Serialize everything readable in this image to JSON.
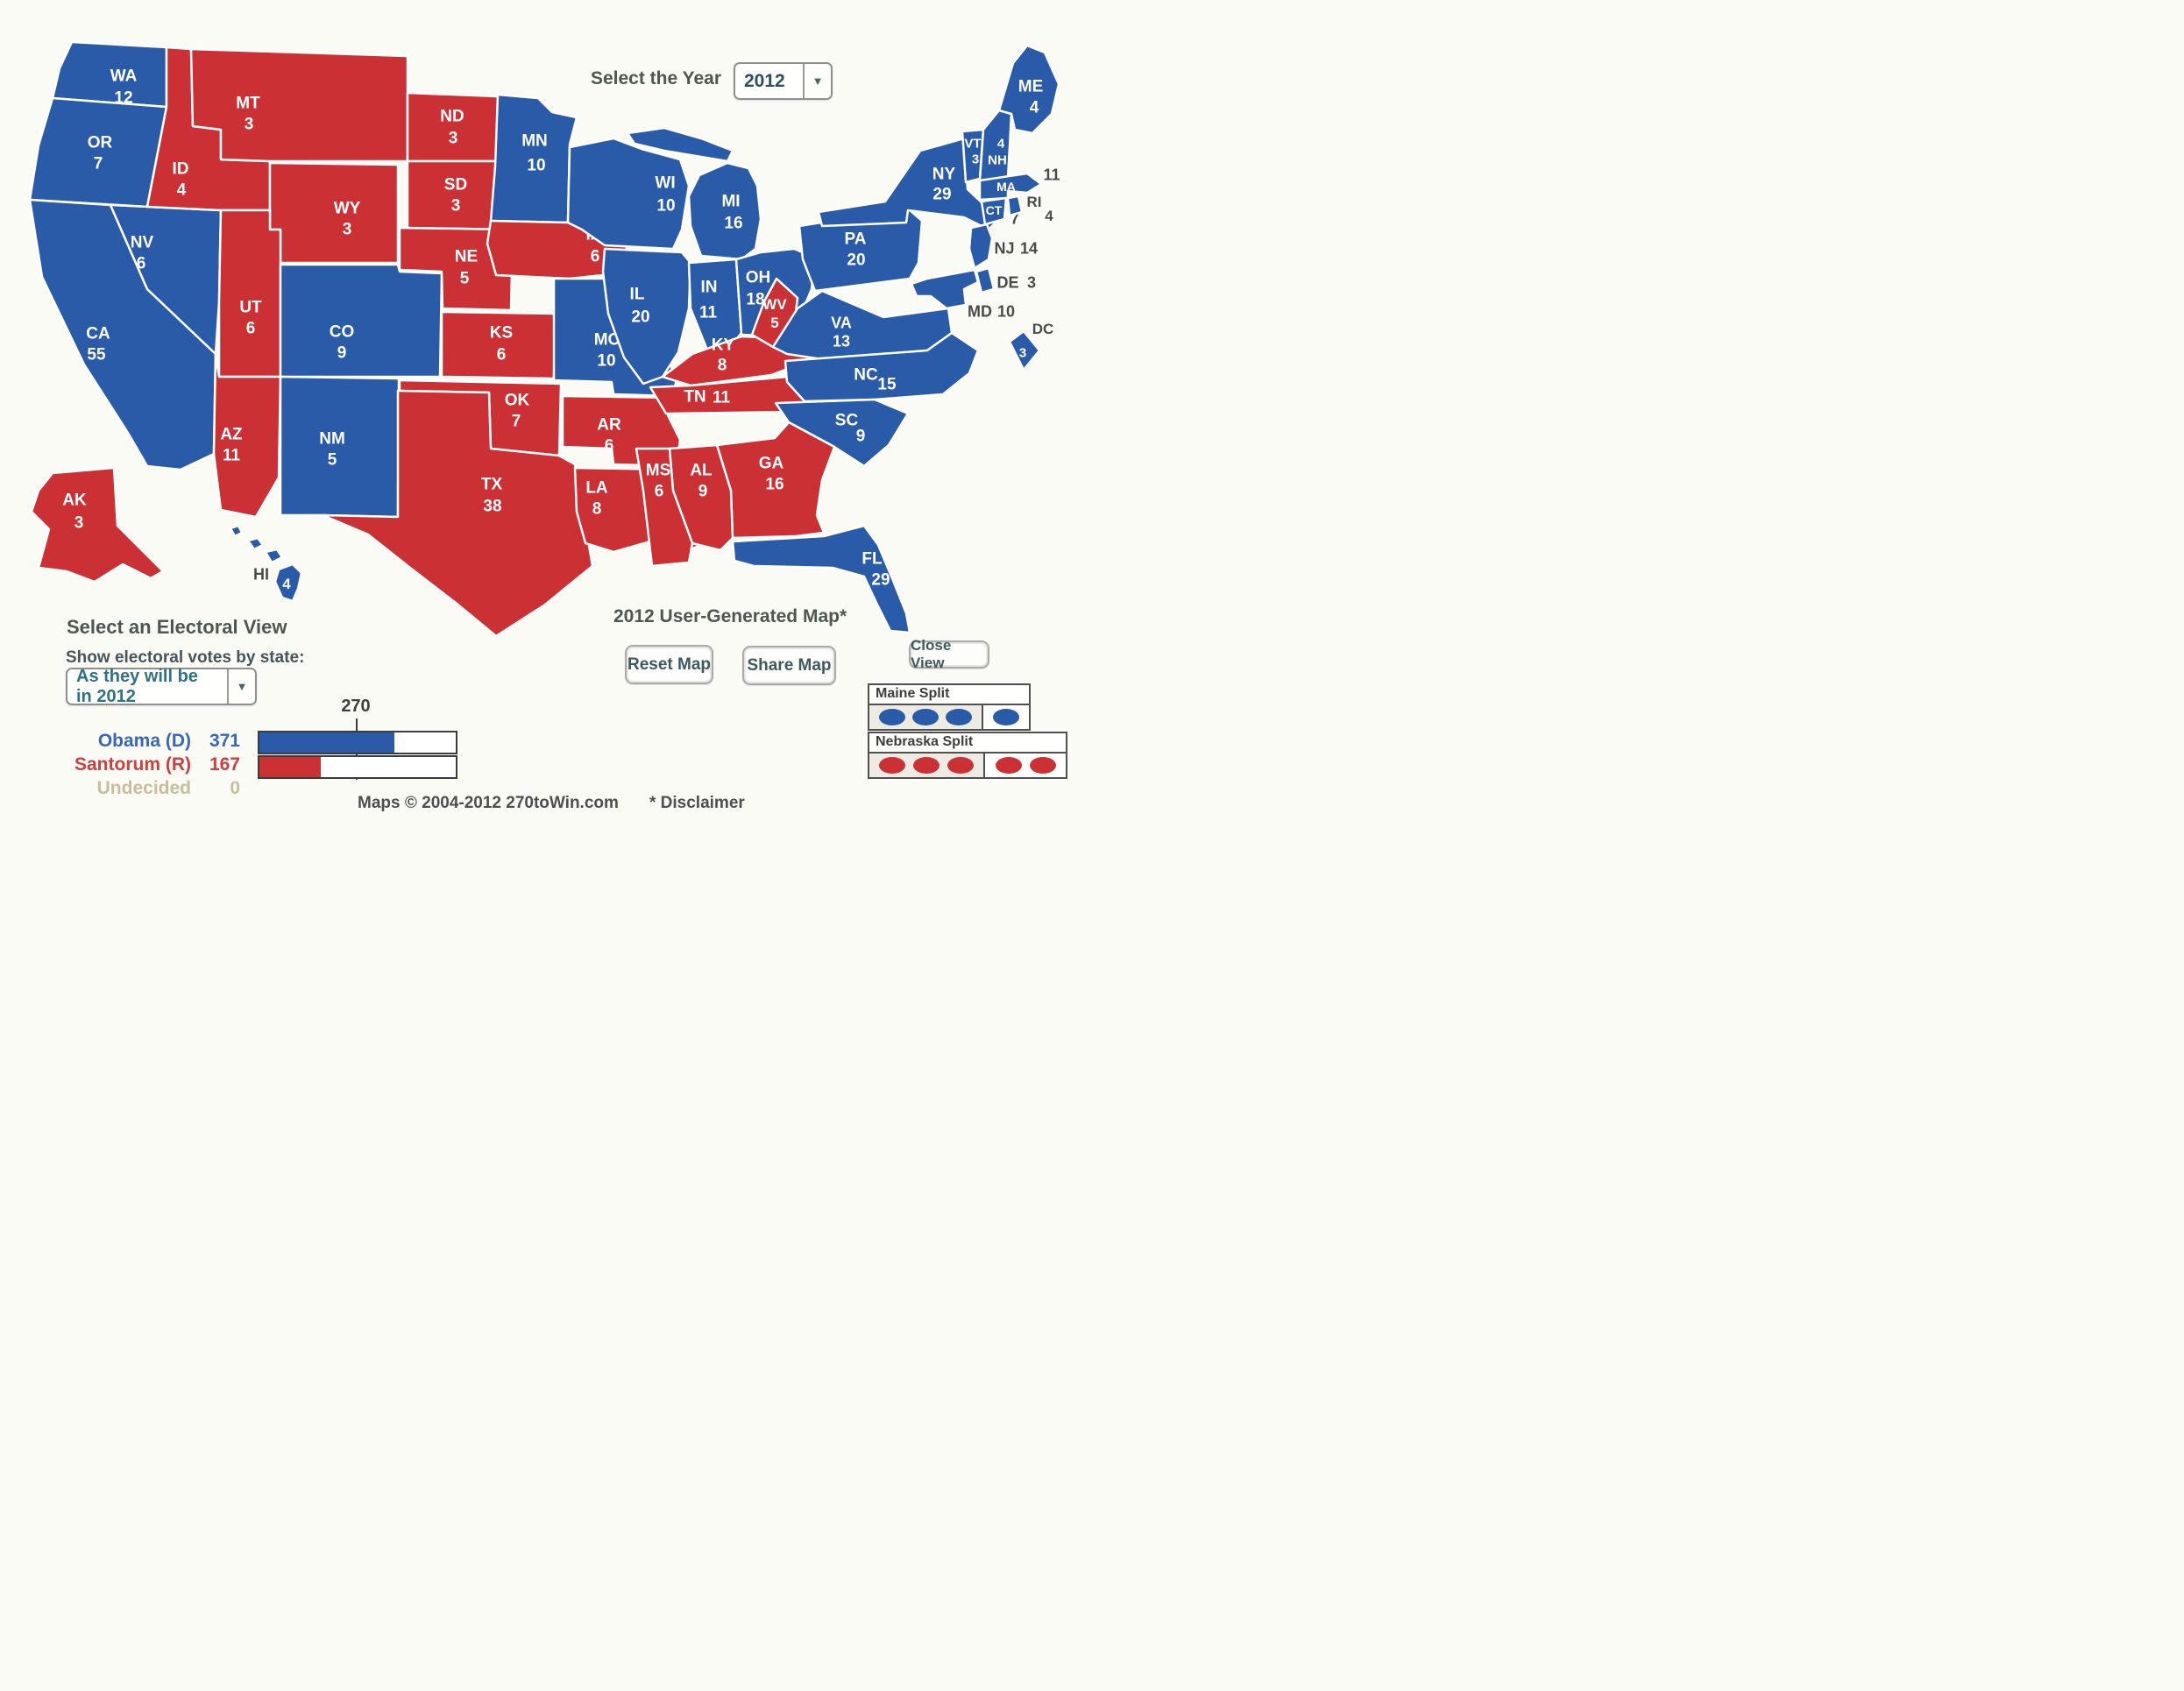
{
  "year_selector": {
    "label": "Select the Year",
    "value": "2012"
  },
  "electoral_view": {
    "title": "Select an Electoral View",
    "subtitle": "Show electoral votes by state:",
    "value": "As they will be in 2012"
  },
  "map_title": "2012 User-Generated Map*",
  "buttons": {
    "reset": "Reset Map",
    "share": "Share Map",
    "close": "Close View"
  },
  "splits": {
    "maine": {
      "label": "Maine Split",
      "party": "D",
      "cells": [
        3,
        1
      ]
    },
    "nebraska": {
      "label": "Nebraska Split",
      "party": "R",
      "cells": [
        3,
        2
      ]
    }
  },
  "summary": {
    "threshold_label": "270",
    "threshold": 270,
    "total_votes": 538,
    "rows": [
      {
        "name": "Obama (D)",
        "votes": 371,
        "party": "D"
      },
      {
        "name": "Santorum (R)",
        "votes": 167,
        "party": "R"
      },
      {
        "name": "Undecided",
        "votes": 0,
        "party": "U"
      }
    ]
  },
  "footer": {
    "copyright": "Maps © 2004-2012 270toWin.com",
    "disclaimer": "* Disclaimer"
  },
  "colors": {
    "democrat": "#2a5ba8",
    "republican": "#cb3134",
    "label_white": "#ffffff",
    "label_gray": "#4a4a4a",
    "heading": "#4b5750",
    "democrat_text": "#3a67b5",
    "republican_text": "#ca3f42",
    "undecided_text": "#c8bd9c"
  },
  "states": [
    {
      "abbr": "WA",
      "ev": 12,
      "party": "D"
    },
    {
      "abbr": "OR",
      "ev": 7,
      "party": "D"
    },
    {
      "abbr": "CA",
      "ev": 55,
      "party": "D"
    },
    {
      "abbr": "NV",
      "ev": 6,
      "party": "D"
    },
    {
      "abbr": "ID",
      "ev": 4,
      "party": "R"
    },
    {
      "abbr": "MT",
      "ev": 3,
      "party": "R"
    },
    {
      "abbr": "WY",
      "ev": 3,
      "party": "R"
    },
    {
      "abbr": "UT",
      "ev": 6,
      "party": "R"
    },
    {
      "abbr": "CO",
      "ev": 9,
      "party": "D"
    },
    {
      "abbr": "AZ",
      "ev": 11,
      "party": "R"
    },
    {
      "abbr": "NM",
      "ev": 5,
      "party": "D"
    },
    {
      "abbr": "ND",
      "ev": 3,
      "party": "R"
    },
    {
      "abbr": "SD",
      "ev": 3,
      "party": "R"
    },
    {
      "abbr": "NE",
      "ev": 5,
      "party": "R"
    },
    {
      "abbr": "KS",
      "ev": 6,
      "party": "R"
    },
    {
      "abbr": "OK",
      "ev": 7,
      "party": "R"
    },
    {
      "abbr": "TX",
      "ev": 38,
      "party": "R"
    },
    {
      "abbr": "MN",
      "ev": 10,
      "party": "D"
    },
    {
      "abbr": "IA",
      "ev": 6,
      "party": "R"
    },
    {
      "abbr": "MO",
      "ev": 10,
      "party": "D"
    },
    {
      "abbr": "AR",
      "ev": 6,
      "party": "R"
    },
    {
      "abbr": "LA",
      "ev": 8,
      "party": "R"
    },
    {
      "abbr": "WI",
      "ev": 10,
      "party": "D"
    },
    {
      "abbr": "IL",
      "ev": 20,
      "party": "D"
    },
    {
      "abbr": "MI",
      "ev": 16,
      "party": "D"
    },
    {
      "abbr": "IN",
      "ev": 11,
      "party": "D"
    },
    {
      "abbr": "OH",
      "ev": 18,
      "party": "D"
    },
    {
      "abbr": "KY",
      "ev": 8,
      "party": "R"
    },
    {
      "abbr": "TN",
      "ev": 11,
      "party": "R"
    },
    {
      "abbr": "WV",
      "ev": 5,
      "party": "R"
    },
    {
      "abbr": "VA",
      "ev": 13,
      "party": "D"
    },
    {
      "abbr": "NC",
      "ev": 15,
      "party": "D"
    },
    {
      "abbr": "SC",
      "ev": 9,
      "party": "D"
    },
    {
      "abbr": "GA",
      "ev": 16,
      "party": "R"
    },
    {
      "abbr": "AL",
      "ev": 9,
      "party": "R"
    },
    {
      "abbr": "MS",
      "ev": 6,
      "party": "R"
    },
    {
      "abbr": "FL",
      "ev": 29,
      "party": "D"
    },
    {
      "abbr": "PA",
      "ev": 20,
      "party": "D"
    },
    {
      "abbr": "NY",
      "ev": 29,
      "party": "D"
    },
    {
      "abbr": "NJ",
      "ev": 14,
      "party": "D"
    },
    {
      "abbr": "DE",
      "ev": 3,
      "party": "D"
    },
    {
      "abbr": "MD",
      "ev": 10,
      "party": "D"
    },
    {
      "abbr": "DC",
      "ev": 3,
      "party": "D"
    },
    {
      "abbr": "VT",
      "ev": 3,
      "party": "D"
    },
    {
      "abbr": "NH",
      "ev": 4,
      "party": "D"
    },
    {
      "abbr": "MA",
      "ev": 11,
      "party": "D"
    },
    {
      "abbr": "CT",
      "ev": 7,
      "party": "D"
    },
    {
      "abbr": "RI",
      "ev": 4,
      "party": "D"
    },
    {
      "abbr": "ME",
      "ev": 4,
      "party": "D"
    },
    {
      "abbr": "AK",
      "ev": 3,
      "party": "R"
    },
    {
      "abbr": "HI",
      "ev": 4,
      "party": "D"
    }
  ]
}
